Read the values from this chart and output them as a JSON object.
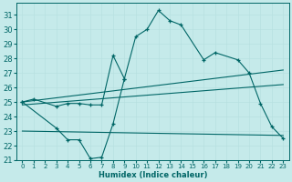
{
  "xlabel": "Humidex (Indice chaleur)",
  "ylabel": "",
  "bg_color": "#c5eaea",
  "line_color": "#006666",
  "xlim": [
    -0.5,
    23.5
  ],
  "ylim": [
    21.0,
    31.8
  ],
  "yticks": [
    21,
    22,
    23,
    24,
    25,
    26,
    27,
    28,
    29,
    30,
    31
  ],
  "xticks": [
    0,
    1,
    2,
    3,
    4,
    5,
    6,
    7,
    8,
    9,
    10,
    11,
    12,
    13,
    14,
    15,
    16,
    17,
    18,
    19,
    20,
    21,
    22,
    23
  ],
  "series": [
    {
      "x": [
        0,
        1,
        3,
        4,
        5,
        6,
        7,
        8,
        9,
        10,
        11,
        12,
        13,
        14,
        16,
        17,
        19,
        20,
        21,
        22,
        23
      ],
      "y": [
        25.0,
        25.2,
        24.7,
        24.9,
        24.9,
        24.8,
        24.8,
        28.2,
        26.6,
        29.5,
        30.0,
        31.3,
        30.6,
        30.3,
        27.9,
        28.4,
        27.9,
        27.0,
        24.9,
        23.3,
        22.5
      ],
      "marker": true,
      "connect": true
    },
    {
      "x": [
        0,
        3,
        4,
        5,
        6,
        7,
        8,
        9
      ],
      "y": [
        25.0,
        23.2,
        22.4,
        22.4,
        21.1,
        21.2,
        23.5,
        26.6
      ],
      "marker": true,
      "connect": true
    },
    {
      "x": [
        0,
        23
      ],
      "y": [
        25.0,
        27.2
      ],
      "marker": false,
      "connect": true
    },
    {
      "x": [
        0,
        23
      ],
      "y": [
        24.8,
        26.2
      ],
      "marker": false,
      "connect": true
    },
    {
      "x": [
        0,
        23
      ],
      "y": [
        23.0,
        22.7
      ],
      "marker": false,
      "connect": true
    }
  ]
}
